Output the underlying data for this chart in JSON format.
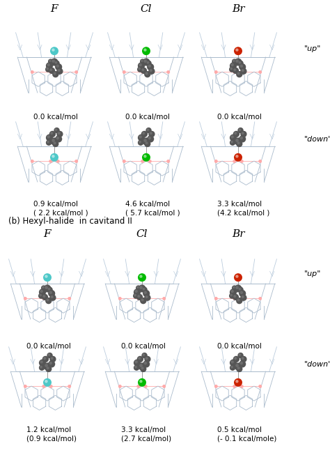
{
  "title_section_b": "(b) Hexyl-halide  in cavitand II",
  "col_labels": [
    "F",
    "Cl",
    "Br"
  ],
  "energies_a_up": [
    "0.0 kcal/mol",
    "0.0 kcal/mol",
    "0.0 kcal/mol"
  ],
  "energies_a_down_line1": [
    "0.9 kcal/mol",
    "4.6 kcal/mol",
    "3.3 kcal/mol"
  ],
  "energies_a_down_line2": [
    "( 2.2 kcal/mol )",
    "( 5.7 kcal/mol )",
    "(4.2 kcal/mol )"
  ],
  "energies_b_up": [
    "0.0 kcal/mol",
    "0.0 kcal/mol",
    "0.0 kcal/mol"
  ],
  "energies_b_down_line1": [
    "1.2 kcal/mol",
    "3.3 kcal/mol",
    "0.5 kcal/mol"
  ],
  "energies_b_down_line2": [
    "(0.9 kcal/mol)",
    "(2.7 kcal/mol)",
    "(- 0.1 kcal/mole)"
  ],
  "halide_colors_F": "#4DC8C8",
  "halide_colors_Cl": "#00BB00",
  "halide_colors_Br": "#CC2200",
  "frame_color": "#AABBCC",
  "frame_color2": "#BBCCDD",
  "pink_color": "#FFAAAA",
  "carbon_color": "#555555",
  "carbon_light": "#777777",
  "bg_color": "#FFFFFF",
  "text_color": "#000000",
  "figure_width": 4.74,
  "figure_height": 6.63,
  "dpi": 100
}
